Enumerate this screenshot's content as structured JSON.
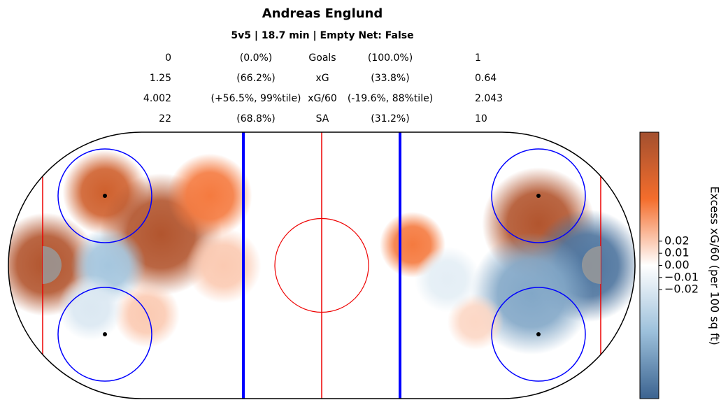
{
  "chart_data": {
    "type": "heatmap",
    "title": "Andreas Englund",
    "subtitle": "5v5 | 18.7 min | Empty Net: False",
    "stats_table": [
      [
        "0",
        "(0.0%)",
        "Goals",
        "(100.0%)",
        "1"
      ],
      [
        "1.25",
        "(66.2%)",
        "xG",
        "(33.8%)",
        "0.64"
      ],
      [
        "4.002",
        "(+56.5%, 99%tile)",
        "xG/60",
        "(-19.6%, 88%tile)",
        "2.043"
      ],
      [
        "22",
        "(68.8%)",
        "SA",
        "(31.2%)",
        "10"
      ]
    ],
    "xlim": [
      -100,
      100
    ],
    "ylim": [
      -42.5,
      42.5
    ],
    "heatmap": {
      "x": [
        -88.2,
        -69.2,
        -51.3,
        -35.7,
        -31.3,
        -55.8,
        -68.1,
        -73.7,
        69.2,
        29.0,
        84.8,
        67.0,
        49.1,
        40.2
      ],
      "y": [
        0.3,
        23.3,
        9.9,
        22.2,
        -0.1,
        -15.7,
        -0.1,
        -13.5,
        13.3,
        6.6,
        -0.1,
        -9.0,
        -18.0,
        -4.5
      ],
      "values": [
        0.1,
        0.08,
        0.1,
        0.05,
        0.02,
        0.02,
        -0.05,
        -0.02,
        0.1,
        0.05,
        -0.1,
        -0.07,
        0.015,
        -0.015
      ],
      "sizes": [
        11,
        9,
        13,
        9,
        8,
        7,
        8,
        7,
        12,
        7,
        12,
        13,
        6,
        7
      ]
    },
    "colormap": [
      "#3b6390",
      "#9cc0db",
      "#ffffff",
      "#f46d2c",
      "#a3502f"
    ],
    "clim": [
      -0.11,
      0.11
    ],
    "colorbar_ticks": [
      {
        "value": 0.02,
        "label": "0.02"
      },
      {
        "value": 0.01,
        "label": "0.01"
      },
      {
        "value": 0,
        "label": "0.00"
      },
      {
        "value": -0.01,
        "label": "−0.01"
      },
      {
        "value": -0.02,
        "label": "−0.02"
      }
    ],
    "colorbar_label": "Excess xG/60 (per 100 sq ft)"
  }
}
